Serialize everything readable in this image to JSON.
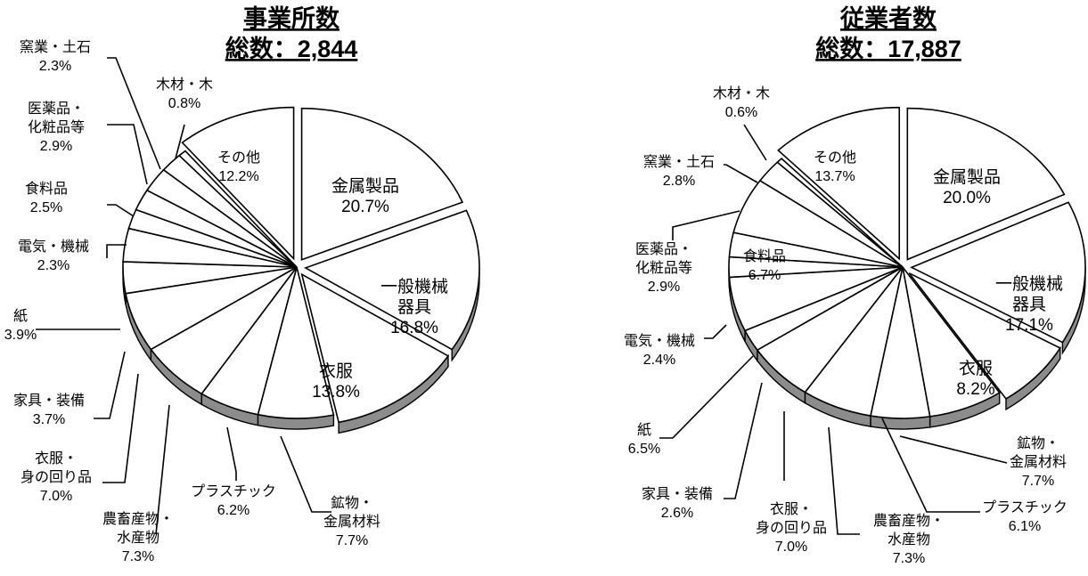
{
  "colors": {
    "slice_top": "#ffffff",
    "slice_side": "#8c8c8c",
    "line": "#000000"
  },
  "chart_data": [
    {
      "type": "pie",
      "title": "事業所数",
      "subtitle": "総数：2,844",
      "slices": [
        {
          "label": "金属製品",
          "value": 20.7,
          "value_text": "20.7%",
          "exploded": true
        },
        {
          "label": "一般機械器具",
          "value": 16.8,
          "value_text": "16.8%",
          "exploded": true
        },
        {
          "label": "衣服",
          "value": 13.8,
          "value_text": "13.8%",
          "exploded": true
        },
        {
          "label": "鉱物・金属材料",
          "value": 7.7,
          "value_text": "7.7%",
          "exploded": false
        },
        {
          "label": "プラスチック",
          "value": 6.2,
          "value_text": "6.2%",
          "exploded": false
        },
        {
          "label": "農畜産物・水産物",
          "value": 7.3,
          "value_text": "7.3%",
          "exploded": false
        },
        {
          "label": "衣服・身の回り品",
          "value": 7.0,
          "value_text": "7.0%",
          "exploded": false
        },
        {
          "label": "家具・装備",
          "value": 3.7,
          "value_text": "3.7%",
          "exploded": false
        },
        {
          "label": "紙",
          "value": 3.9,
          "value_text": "3.9%",
          "exploded": false
        },
        {
          "label": "電気・機械",
          "value": 2.3,
          "value_text": "2.3%",
          "exploded": false
        },
        {
          "label": "食料品",
          "value": 2.5,
          "value_text": "2.5%",
          "exploded": false
        },
        {
          "label": "医薬品・化粧品等",
          "value": 2.9,
          "value_text": "2.9%",
          "exploded": false
        },
        {
          "label": "窯業・土石",
          "value": 2.3,
          "value_text": "2.3%",
          "exploded": false
        },
        {
          "label": "木材・木",
          "value": 0.8,
          "value_text": "0.8%",
          "exploded": false
        },
        {
          "label": "その他",
          "value": 12.2,
          "value_text": "12.2%",
          "exploded": true
        }
      ]
    },
    {
      "type": "pie",
      "title": "従業者数",
      "subtitle": "総数：17,887",
      "slices": [
        {
          "label": "金属製品",
          "value": 20.0,
          "value_text": "20.0%",
          "exploded": true
        },
        {
          "label": "一般機械器具",
          "value": 17.1,
          "value_text": "17.1%",
          "exploded": true
        },
        {
          "label": "衣服",
          "value": 8.2,
          "value_text": "8.2%",
          "exploded": true
        },
        {
          "label": "鉱物・金属材料",
          "value": 7.7,
          "value_text": "7.7%",
          "exploded": false
        },
        {
          "label": "プラスチック",
          "value": 6.1,
          "value_text": "6.1%",
          "exploded": false
        },
        {
          "label": "農畜産物・水産物",
          "value": 7.3,
          "value_text": "7.3%",
          "exploded": false
        },
        {
          "label": "衣服・身の回り品",
          "value": 7.0,
          "value_text": "7.0%",
          "exploded": false
        },
        {
          "label": "家具・装備",
          "value": 2.6,
          "value_text": "2.6%",
          "exploded": false
        },
        {
          "label": "紙",
          "value": 6.5,
          "value_text": "6.5%",
          "exploded": false
        },
        {
          "label": "電気・機械",
          "value": 2.4,
          "value_text": "2.4%",
          "exploded": false
        },
        {
          "label": "医薬品・化粧品等",
          "value": 2.9,
          "value_text": "2.9%",
          "exploded": false
        },
        {
          "label": "食料品",
          "value": 6.7,
          "value_text": "6.7%",
          "exploded": false
        },
        {
          "label": "窯業・土石",
          "value": 2.8,
          "value_text": "2.8%",
          "exploded": false
        },
        {
          "label": "木材・木",
          "value": 0.6,
          "value_text": "0.6%",
          "exploded": false
        },
        {
          "label": "その他",
          "value": 13.7,
          "value_text": "13.7%",
          "exploded": true
        }
      ]
    }
  ]
}
